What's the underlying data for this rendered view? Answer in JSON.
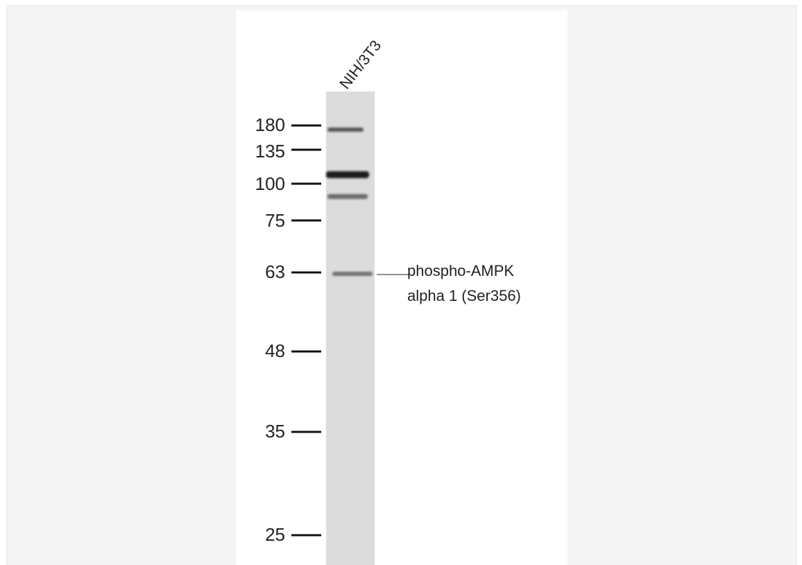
{
  "lane_label": "NIH/3T3",
  "markers": [
    "180",
    "135",
    "100",
    "75",
    "63",
    "48",
    "35",
    "25"
  ],
  "annotation": {
    "line1": "phospho-AMPK",
    "line2": "alpha 1 (Ser356)"
  }
}
